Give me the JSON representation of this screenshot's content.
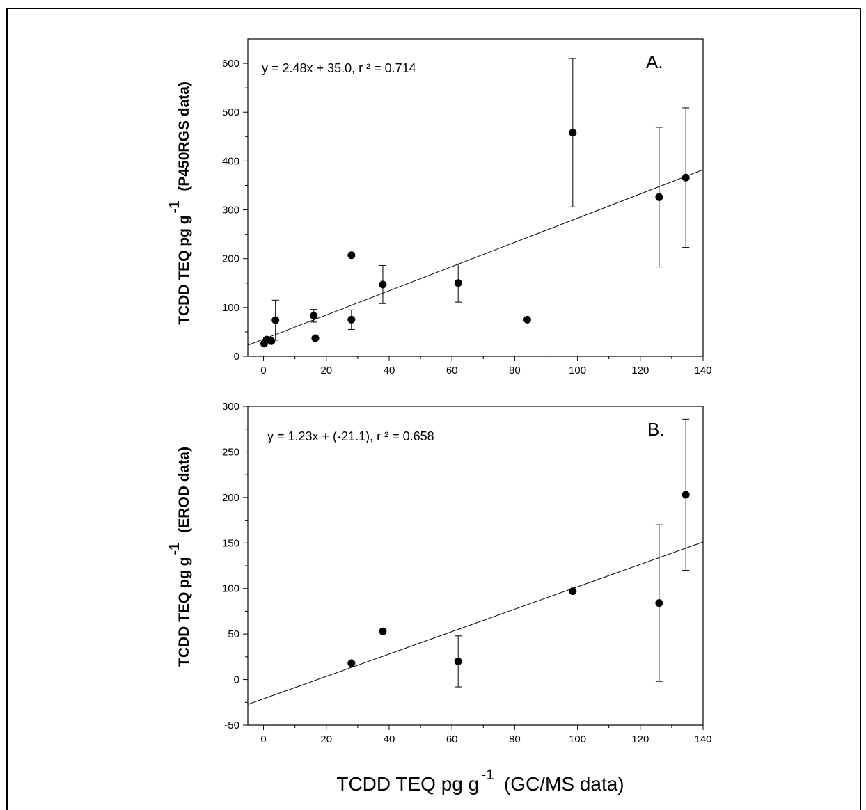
{
  "chart_data": [
    {
      "type": "scatter",
      "panel_label": "A.",
      "equation": "y = 2.48x + 35.0,  r ² = 0.714",
      "ylabel_main": "TCDD TEQ pg g",
      "ylabel_sup": "-1",
      "ylabel_suffix": "(P450RGS data)",
      "xlim": [
        -5,
        140
      ],
      "ylim": [
        0,
        650
      ],
      "xticks": [
        0,
        20,
        40,
        60,
        80,
        100,
        120,
        140
      ],
      "yticks": [
        0,
        100,
        200,
        300,
        400,
        500,
        600
      ],
      "regression": {
        "slope": 2.48,
        "intercept": 35.0
      },
      "points": [
        {
          "x": 0.2,
          "y": 26,
          "err": 0
        },
        {
          "x": 1,
          "y": 34,
          "err": 0
        },
        {
          "x": 2.5,
          "y": 31,
          "err": 0
        },
        {
          "x": 3.8,
          "y": 74,
          "err": 41
        },
        {
          "x": 16,
          "y": 83,
          "err": 13
        },
        {
          "x": 16.5,
          "y": 37,
          "err": 0
        },
        {
          "x": 28,
          "y": 207,
          "err": 0
        },
        {
          "x": 28,
          "y": 75,
          "err": 20
        },
        {
          "x": 38,
          "y": 147,
          "err": 39
        },
        {
          "x": 62,
          "y": 150,
          "err": 39
        },
        {
          "x": 84,
          "y": 75,
          "err": 0
        },
        {
          "x": 98.5,
          "y": 458,
          "err": 152
        },
        {
          "x": 126,
          "y": 326,
          "err": 143
        },
        {
          "x": 134.5,
          "y": 366,
          "err": 143
        }
      ]
    },
    {
      "type": "scatter",
      "panel_label": "B.",
      "equation": "y = 1.23x + (-21.1),  r ² = 0.658",
      "ylabel_main": "TCDD TEQ pg g",
      "ylabel_sup": "-1",
      "ylabel_suffix": "(EROD data)",
      "xlabel_main": "TCDD TEQ pg g",
      "xlabel_sup": "-1",
      "xlabel_suffix": "(GC/MS data)",
      "xlim": [
        -5,
        140
      ],
      "ylim": [
        -50,
        300
      ],
      "xticks": [
        0,
        20,
        40,
        60,
        80,
        100,
        120,
        140
      ],
      "yticks": [
        -50,
        0,
        50,
        100,
        150,
        200,
        250,
        300
      ],
      "regression": {
        "slope": 1.23,
        "intercept": -21.1
      },
      "points": [
        {
          "x": 28,
          "y": 18,
          "err": 0
        },
        {
          "x": 38,
          "y": 53,
          "err": 0
        },
        {
          "x": 62,
          "y": 20,
          "err": 28
        },
        {
          "x": 98.5,
          "y": 97,
          "err": 0
        },
        {
          "x": 126,
          "y": 84,
          "err": 86
        },
        {
          "x": 134.5,
          "y": 203,
          "err": 83
        }
      ]
    }
  ]
}
